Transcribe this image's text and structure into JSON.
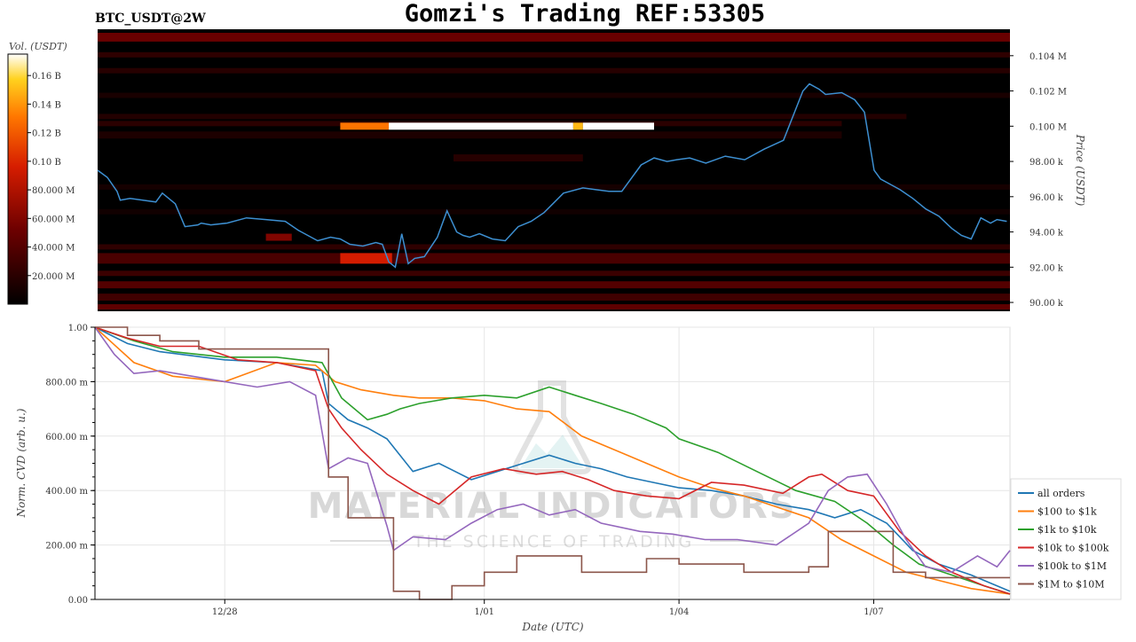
{
  "header": {
    "symbol_label": "BTC_USDT@2W",
    "title": "Gomzi's Trading REF:53305"
  },
  "colorbar": {
    "label": "Vol. (USDT)",
    "ticks": [
      "0.16 B",
      "0.14 B",
      "0.12 B",
      "0.10 B",
      "80.000 M",
      "60.000 M",
      "40.000 M",
      "20.000 M"
    ],
    "tick_values": [
      160,
      140,
      120,
      100,
      80,
      60,
      40,
      20
    ],
    "range": [
      0,
      175
    ]
  },
  "watermark": {
    "line1": "MATERIAL INDICATORS",
    "line2": "THE SCIENCE OF TRADING"
  },
  "colors": {
    "price_line": "#3d8fd1",
    "heatmap_background": "#000000",
    "all_orders": "#1f77b4",
    "100_to_1k": "#ff7f0e",
    "1k_to_10k": "#2ca02c",
    "10k_to_100k": "#d62728",
    "100k_to_1m": "#9467bd",
    "1m_to_10m": "#8c564b"
  },
  "chart_data": [
    {
      "type": "heatmap",
      "ylabel": "Price (USDT)",
      "y_tick_labels": [
        "0.104 M",
        "0.102 M",
        "0.100 M",
        "98.00 k",
        "96.00 k",
        "94.00 k",
        "92.00 k",
        "90.00 k"
      ],
      "y_ticks": [
        104000,
        102000,
        100000,
        98000,
        96000,
        94000,
        92000,
        90000
      ],
      "ylim": [
        89500,
        105500
      ],
      "x_range_days": [
        0,
        14.1
      ],
      "price_series": {
        "x": [
          0,
          0.15,
          0.3,
          0.35,
          0.5,
          0.7,
          0.9,
          1.0,
          1.2,
          1.35,
          1.55,
          1.6,
          1.75,
          2.0,
          2.3,
          2.6,
          2.9,
          3.1,
          3.4,
          3.6,
          3.75,
          3.9,
          4.1,
          4.3,
          4.4,
          4.5,
          4.6,
          4.7,
          4.8,
          4.9,
          5.05,
          5.25,
          5.4,
          5.55,
          5.65,
          5.75,
          5.9,
          6.1,
          6.3,
          6.5,
          6.7,
          6.9,
          7.2,
          7.5,
          7.7,
          7.9,
          8.1,
          8.4,
          8.6,
          8.8,
          8.95,
          9.15,
          9.4,
          9.7,
          10.0,
          10.3,
          10.6,
          10.9,
          11.0,
          11.15,
          11.25,
          11.5,
          11.7,
          11.85,
          12.0,
          12.1,
          12.2,
          12.4,
          12.6,
          12.8,
          13.0,
          13.2,
          13.35,
          13.5,
          13.65,
          13.8,
          13.9,
          14.05
        ],
        "y": [
          97500,
          97100,
          96300,
          95800,
          95900,
          95800,
          95700,
          96200,
          95600,
          94300,
          94400,
          94500,
          94400,
          94500,
          94800,
          94700,
          94600,
          94100,
          93500,
          93700,
          93600,
          93300,
          93200,
          93400,
          93300,
          92300,
          92000,
          93900,
          92200,
          92500,
          92600,
          93700,
          95200,
          94000,
          93800,
          93700,
          93900,
          93600,
          93500,
          94300,
          94600,
          95100,
          96200,
          96500,
          96400,
          96300,
          96300,
          97800,
          98200,
          98000,
          98100,
          98200,
          97900,
          98300,
          98100,
          98700,
          99200,
          102000,
          102400,
          102100,
          101800,
          101900,
          101500,
          100800,
          97500,
          97000,
          96800,
          96400,
          95900,
          95300,
          94900,
          94200,
          93800,
          93600,
          94800,
          94500,
          94700,
          94600
        ]
      },
      "heat_bands": [
        {
          "price_low": 104800,
          "price_high": 105300,
          "x_start": 0,
          "x_end": 14.1,
          "volume_m": 50
        },
        {
          "price_low": 103900,
          "price_high": 104200,
          "x_start": 0,
          "x_end": 14.1,
          "volume_m": 22
        },
        {
          "price_low": 103000,
          "price_high": 103300,
          "x_start": 0,
          "x_end": 14.1,
          "volume_m": 18
        },
        {
          "price_low": 101600,
          "price_high": 101900,
          "x_start": 0,
          "x_end": 14.1,
          "volume_m": 12
        },
        {
          "price_low": 100400,
          "price_high": 100700,
          "x_start": 0,
          "x_end": 12.5,
          "volume_m": 16
        },
        {
          "price_low": 100000,
          "price_high": 100300,
          "x_start": 0,
          "x_end": 11.5,
          "volume_m": 20
        },
        {
          "price_low": 99800,
          "price_high": 100200,
          "x_start": 3.75,
          "x_end": 4.5,
          "volume_m": 130
        },
        {
          "price_low": 99800,
          "price_high": 100200,
          "x_start": 4.5,
          "x_end": 7.35,
          "volume_m": 175
        },
        {
          "price_low": 99800,
          "price_high": 100200,
          "x_start": 7.35,
          "x_end": 7.5,
          "volume_m": 150
        },
        {
          "price_low": 99800,
          "price_high": 100200,
          "x_start": 7.5,
          "x_end": 8.6,
          "volume_m": 175
        },
        {
          "price_low": 99300,
          "price_high": 99700,
          "x_start": 0,
          "x_end": 11.5,
          "volume_m": 14
        },
        {
          "price_low": 98000,
          "price_high": 98400,
          "x_start": 5.5,
          "x_end": 7.5,
          "volume_m": 18
        },
        {
          "price_low": 96400,
          "price_high": 96700,
          "x_start": 0,
          "x_end": 14.1,
          "volume_m": 10
        },
        {
          "price_low": 95000,
          "price_high": 95300,
          "x_start": 0,
          "x_end": 14.1,
          "volume_m": 8
        },
        {
          "price_low": 93500,
          "price_high": 93900,
          "x_start": 2.6,
          "x_end": 3.0,
          "volume_m": 60
        },
        {
          "price_low": 93000,
          "price_high": 93300,
          "x_start": 0,
          "x_end": 14.1,
          "volume_m": 22
        },
        {
          "price_low": 92200,
          "price_high": 92800,
          "x_start": 0,
          "x_end": 14.1,
          "volume_m": 35
        },
        {
          "price_low": 92200,
          "price_high": 92800,
          "x_start": 3.75,
          "x_end": 4.55,
          "volume_m": 95
        },
        {
          "price_low": 91500,
          "price_high": 91800,
          "x_start": 0,
          "x_end": 14.1,
          "volume_m": 28
        },
        {
          "price_low": 90800,
          "price_high": 91200,
          "x_start": 0,
          "x_end": 14.1,
          "volume_m": 40
        },
        {
          "price_low": 90100,
          "price_high": 90500,
          "x_start": 0,
          "x_end": 14.1,
          "volume_m": 30
        },
        {
          "price_low": 89600,
          "price_high": 89900,
          "x_start": 0,
          "x_end": 14.1,
          "volume_m": 45
        }
      ]
    },
    {
      "type": "line",
      "xlabel": "Date (UTC)",
      "ylabel": "Norm. CVD (arb. u.)",
      "ylim": [
        0,
        1
      ],
      "xlim_days": [
        0,
        14.1
      ],
      "y_tick_labels": [
        "1.00",
        "800.00 m",
        "600.00 m",
        "400.00 m",
        "200.00 m",
        "0.00"
      ],
      "y_ticks": [
        1.0,
        0.8,
        0.6,
        0.4,
        0.2,
        0.0
      ],
      "x_tick_labels": [
        "12/28",
        "1/01",
        "1/04",
        "1/07"
      ],
      "x_ticks": [
        2.0,
        6.0,
        9.0,
        12.0
      ],
      "grid": true,
      "legend_position": "bottom-right",
      "series": [
        {
          "name": "all orders",
          "x": [
            0,
            0.5,
            1,
            2,
            2.8,
            3.5,
            3.6,
            3.9,
            4.2,
            4.5,
            4.9,
            5.3,
            5.8,
            6.2,
            6.6,
            7.0,
            7.4,
            7.8,
            8.2,
            8.6,
            9.0,
            9.5,
            10.0,
            10.5,
            11.0,
            11.4,
            11.8,
            12.2,
            12.6,
            13.0,
            13.5,
            14.0,
            14.1
          ],
          "y": [
            1.0,
            0.94,
            0.91,
            0.88,
            0.87,
            0.84,
            0.72,
            0.66,
            0.63,
            0.59,
            0.47,
            0.5,
            0.44,
            0.47,
            0.5,
            0.53,
            0.5,
            0.48,
            0.45,
            0.43,
            0.41,
            0.4,
            0.38,
            0.35,
            0.33,
            0.3,
            0.33,
            0.28,
            0.18,
            0.13,
            0.09,
            0.04,
            0.03
          ]
        },
        {
          "name": "$100 to $1k",
          "x": [
            0,
            0.6,
            1.2,
            2,
            2.8,
            3.4,
            3.7,
            4.1,
            4.6,
            5.0,
            5.5,
            6.0,
            6.5,
            7.0,
            7.5,
            8.0,
            8.5,
            9.0,
            9.5,
            10.0,
            10.5,
            11.0,
            11.5,
            12.0,
            12.5,
            13.0,
            13.5,
            14.1
          ],
          "y": [
            1.0,
            0.87,
            0.82,
            0.8,
            0.87,
            0.86,
            0.8,
            0.77,
            0.75,
            0.74,
            0.74,
            0.73,
            0.7,
            0.69,
            0.6,
            0.55,
            0.5,
            0.45,
            0.41,
            0.38,
            0.34,
            0.3,
            0.22,
            0.16,
            0.1,
            0.07,
            0.04,
            0.02
          ]
        },
        {
          "name": "$1k to $10k",
          "x": [
            0,
            0.6,
            1.2,
            2,
            2.8,
            3.5,
            3.8,
            4.2,
            4.5,
            4.7,
            5.0,
            5.5,
            6.0,
            6.5,
            7.0,
            7.4,
            7.8,
            8.3,
            8.8,
            9.0,
            9.6,
            10.2,
            10.8,
            11.4,
            11.9,
            12.3,
            12.7,
            13.2,
            13.7,
            14.1
          ],
          "y": [
            1.0,
            0.95,
            0.91,
            0.89,
            0.89,
            0.87,
            0.74,
            0.66,
            0.68,
            0.7,
            0.72,
            0.74,
            0.75,
            0.74,
            0.78,
            0.75,
            0.72,
            0.68,
            0.63,
            0.59,
            0.54,
            0.47,
            0.4,
            0.36,
            0.28,
            0.2,
            0.13,
            0.09,
            0.05,
            0.02
          ]
        },
        {
          "name": "$10k to $100k",
          "x": [
            0,
            0.5,
            1,
            1.6,
            2.2,
            2.8,
            3.4,
            3.6,
            3.8,
            4.1,
            4.5,
            4.9,
            5.3,
            5.8,
            6.3,
            6.8,
            7.2,
            7.6,
            8.0,
            8.5,
            9.0,
            9.5,
            10.0,
            10.6,
            11.0,
            11.2,
            11.6,
            12.0,
            12.4,
            12.8,
            13.2,
            13.7,
            14.1
          ],
          "y": [
            1.0,
            0.96,
            0.93,
            0.93,
            0.88,
            0.87,
            0.84,
            0.7,
            0.63,
            0.55,
            0.46,
            0.4,
            0.35,
            0.45,
            0.48,
            0.46,
            0.47,
            0.44,
            0.4,
            0.38,
            0.37,
            0.43,
            0.42,
            0.39,
            0.45,
            0.46,
            0.4,
            0.38,
            0.25,
            0.16,
            0.1,
            0.05,
            0.02
          ]
        },
        {
          "name": "$100k to $1M",
          "x": [
            0,
            0.3,
            0.6,
            1,
            1.5,
            2,
            2.5,
            3.0,
            3.4,
            3.6,
            3.9,
            4.2,
            4.5,
            4.6,
            4.9,
            5.4,
            5.8,
            6.2,
            6.6,
            7.0,
            7.4,
            7.8,
            8.4,
            8.9,
            9.4,
            9.9,
            10.5,
            11.0,
            11.3,
            11.6,
            11.9,
            12.2,
            12.5,
            12.8,
            13.2,
            13.6,
            13.9,
            14.1
          ],
          "y": [
            1.0,
            0.9,
            0.83,
            0.84,
            0.82,
            0.8,
            0.78,
            0.8,
            0.75,
            0.48,
            0.52,
            0.5,
            0.27,
            0.18,
            0.23,
            0.22,
            0.28,
            0.33,
            0.35,
            0.31,
            0.33,
            0.28,
            0.25,
            0.24,
            0.22,
            0.22,
            0.2,
            0.28,
            0.4,
            0.45,
            0.46,
            0.35,
            0.22,
            0.12,
            0.1,
            0.16,
            0.12,
            0.18
          ]
        },
        {
          "name": "$1M to $10M",
          "x": [
            0,
            0.5,
            0.5,
            1.0,
            1.0,
            1.6,
            1.6,
            3.6,
            3.6,
            3.9,
            3.9,
            4.6,
            4.6,
            5.0,
            5.0,
            5.5,
            5.5,
            6.0,
            6.0,
            6.5,
            6.5,
            7.5,
            7.5,
            8.5,
            8.5,
            9.0,
            9.0,
            10.0,
            10.0,
            11.0,
            11.0,
            11.3,
            11.3,
            12.3,
            12.3,
            12.8,
            12.8,
            14.1
          ],
          "y": [
            1.0,
            1.0,
            0.97,
            0.97,
            0.95,
            0.95,
            0.92,
            0.92,
            0.45,
            0.45,
            0.3,
            0.3,
            0.03,
            0.03,
            0.0,
            0.0,
            0.05,
            0.05,
            0.1,
            0.1,
            0.16,
            0.16,
            0.1,
            0.1,
            0.15,
            0.15,
            0.13,
            0.13,
            0.1,
            0.1,
            0.12,
            0.12,
            0.25,
            0.25,
            0.1,
            0.1,
            0.08,
            0.08
          ]
        }
      ]
    }
  ]
}
